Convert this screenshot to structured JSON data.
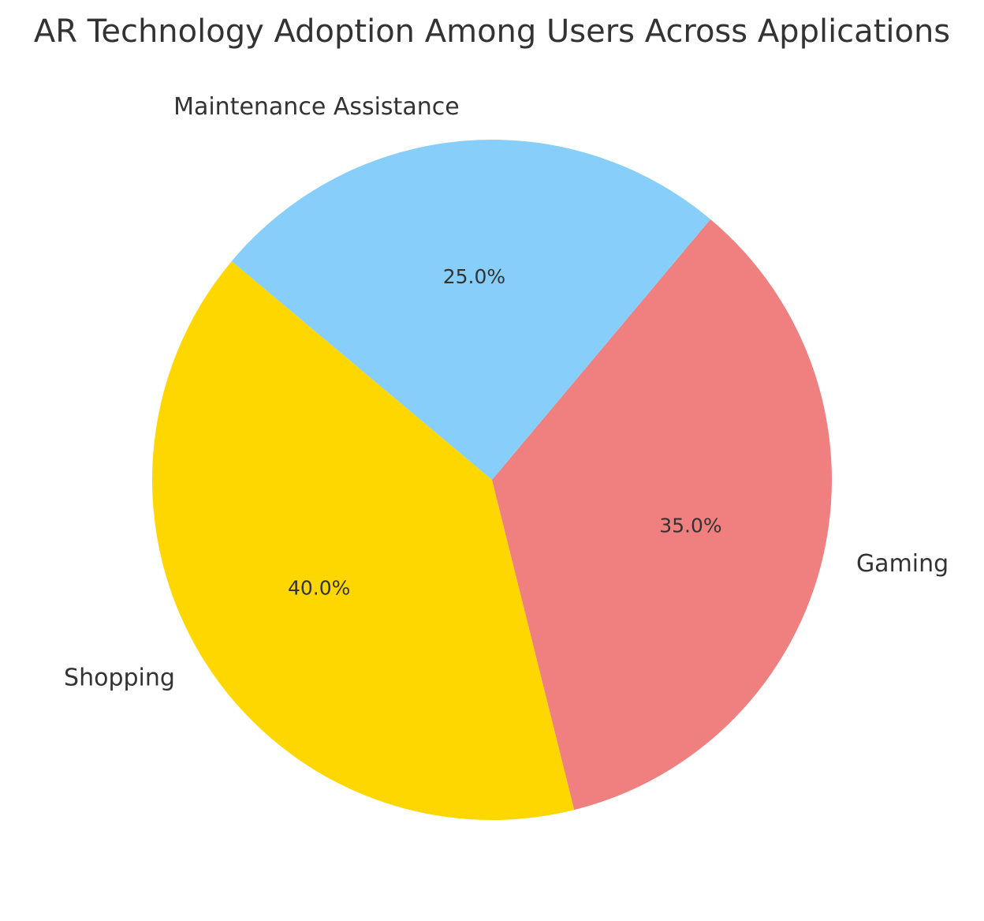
{
  "chart_data": {
    "type": "pie",
    "title": "AR Technology Adoption Among Users Across Applications",
    "labels": [
      "Shopping",
      "Gaming",
      "Maintenance Assistance"
    ],
    "values": [
      40,
      35,
      25
    ],
    "percent_labels": [
      "40.0%",
      "35.0%",
      "25.0%"
    ],
    "colors": [
      "#FFD700",
      "#F08080",
      "#87CEFA"
    ],
    "start_angle_deg": 140,
    "direction": "counterclockwise",
    "legend": "none"
  }
}
